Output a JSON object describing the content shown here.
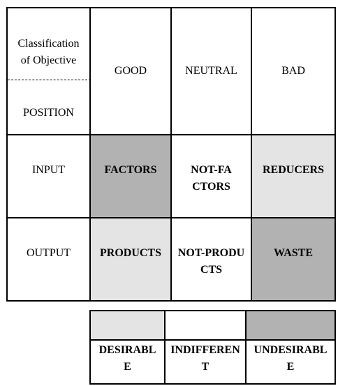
{
  "header": {
    "corner_top": "Classification of Objective",
    "corner_bottom": "POSITION",
    "columns": [
      "GOOD",
      "NEUTRAL",
      "BAD"
    ]
  },
  "rows": [
    {
      "label": "INPUT",
      "cells": [
        "FACTORS",
        "NOT-FACTORS",
        "REDUCERS"
      ]
    },
    {
      "label": "OUTPUT",
      "cells": [
        "PRODUCTS",
        "NOT-PRODUCTS",
        "WASTE"
      ]
    }
  ],
  "legend": [
    {
      "color": "#e4e4e4",
      "label": "DESIRABLE"
    },
    {
      "color": "#ffffff",
      "label": "INDIFFERENT"
    },
    {
      "color": "#b2b2b2",
      "label": "UNDESIRABLE"
    }
  ],
  "colors": {
    "desirable": "#e4e4e4",
    "indifferent": "#ffffff",
    "undesirable": "#b2b2b2"
  }
}
